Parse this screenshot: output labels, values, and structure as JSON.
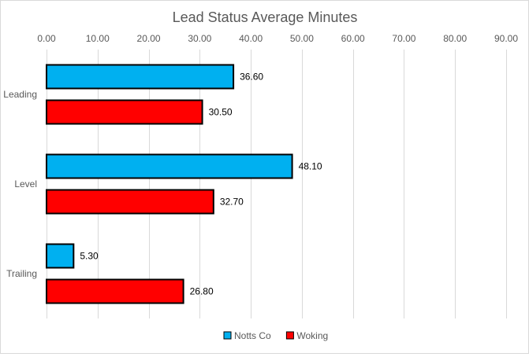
{
  "chart_data": {
    "type": "bar",
    "orientation": "horizontal",
    "title": "Lead Status Average Minutes",
    "categories": [
      "Leading",
      "Level",
      "Trailing"
    ],
    "series": [
      {
        "name": "Notts Co",
        "color": "#00b0f0",
        "values": [
          36.6,
          48.1,
          5.3
        ],
        "labels": [
          "36.60",
          "48.10",
          "5.30"
        ]
      },
      {
        "name": "Woking",
        "color": "#ff0000",
        "values": [
          30.5,
          32.7,
          26.8
        ],
        "labels": [
          "30.50",
          "32.70",
          "26.80"
        ]
      }
    ],
    "xlim": [
      0,
      90
    ],
    "x_ticks": [
      0,
      10,
      20,
      30,
      40,
      50,
      60,
      70,
      80,
      90
    ],
    "x_tick_labels": [
      "0.00",
      "10.00",
      "20.00",
      "30.00",
      "40.00",
      "50.00",
      "60.00",
      "70.00",
      "80.00",
      "90.00"
    ],
    "x_axis_position": "top",
    "grid": true,
    "legend": "bottom",
    "xlabel": "",
    "ylabel": ""
  }
}
